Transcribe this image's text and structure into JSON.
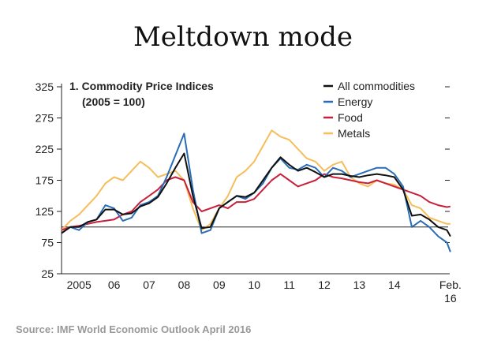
{
  "chart_data": {
    "type": "line",
    "title": "Meltdown mode",
    "panel_title": "1. Commodity Price Indices",
    "panel_subtitle": "(2005 = 100)",
    "source": "Source: IMF World Economic Outlook April 2016",
    "x": [
      2005,
      2005.25,
      2005.5,
      2005.75,
      2006,
      2006.25,
      2006.5,
      2006.75,
      2007,
      2007.25,
      2007.5,
      2007.75,
      2008,
      2008.25,
      2008.5,
      2008.75,
      2009,
      2009.25,
      2009.5,
      2009.75,
      2010,
      2010.25,
      2010.5,
      2010.75,
      2011,
      2011.25,
      2011.5,
      2011.75,
      2012,
      2012.25,
      2012.5,
      2012.75,
      2013,
      2013.25,
      2013.5,
      2013.75,
      2014,
      2014.25,
      2014.5,
      2014.75,
      2015,
      2015.25,
      2015.5,
      2015.75,
      2016,
      2016.1
    ],
    "series": [
      {
        "name": "All commodities",
        "color": "#111111",
        "values": [
          90,
          100,
          100,
          108,
          112,
          128,
          128,
          120,
          122,
          133,
          138,
          148,
          170,
          195,
          218,
          150,
          98,
          100,
          130,
          140,
          150,
          148,
          155,
          175,
          195,
          212,
          200,
          190,
          195,
          188,
          180,
          185,
          185,
          182,
          180,
          183,
          185,
          183,
          180,
          160,
          118,
          120,
          112,
          100,
          95,
          85
        ]
      },
      {
        "name": "Energy",
        "color": "#2a6db5",
        "values": [
          90,
          100,
          95,
          108,
          112,
          135,
          130,
          110,
          115,
          135,
          140,
          150,
          180,
          215,
          250,
          160,
          90,
          95,
          130,
          140,
          150,
          145,
          155,
          170,
          195,
          210,
          195,
          192,
          200,
          195,
          180,
          195,
          190,
          180,
          185,
          190,
          195,
          195,
          185,
          165,
          100,
          110,
          100,
          85,
          75,
          60
        ]
      },
      {
        "name": "Food",
        "color": "#c8203c",
        "values": [
          95,
          100,
          102,
          105,
          108,
          110,
          112,
          120,
          125,
          140,
          150,
          160,
          175,
          180,
          175,
          140,
          125,
          130,
          135,
          130,
          140,
          140,
          145,
          160,
          175,
          185,
          175,
          165,
          170,
          175,
          185,
          180,
          178,
          175,
          172,
          170,
          175,
          170,
          165,
          160,
          155,
          150,
          140,
          135,
          132,
          133
        ]
      },
      {
        "name": "Metals",
        "color": "#f5be5a",
        "values": [
          95,
          110,
          120,
          135,
          150,
          170,
          180,
          175,
          190,
          205,
          195,
          180,
          185,
          190,
          175,
          130,
          95,
          105,
          130,
          150,
          180,
          190,
          205,
          230,
          255,
          245,
          240,
          225,
          210,
          205,
          190,
          200,
          205,
          180,
          170,
          165,
          175,
          170,
          168,
          160,
          135,
          130,
          115,
          110,
          105,
          105
        ]
      }
    ],
    "reference_line": 100,
    "xlim": [
      2005,
      2016.17
    ],
    "xticks": [
      {
        "value": 2005.5,
        "label": "2005"
      },
      {
        "value": 2006.5,
        "label": "06"
      },
      {
        "value": 2007.5,
        "label": "07"
      },
      {
        "value": 2008.5,
        "label": "08"
      },
      {
        "value": 2009.5,
        "label": "09"
      },
      {
        "value": 2010.5,
        "label": "10"
      },
      {
        "value": 2011.5,
        "label": "11"
      },
      {
        "value": 2012.5,
        "label": "12"
      },
      {
        "value": 2013.5,
        "label": "13"
      },
      {
        "value": 2014.5,
        "label": "14"
      },
      {
        "value": 2016.1,
        "label": "Feb.\n16"
      }
    ],
    "ylim": [
      25,
      325
    ],
    "yticks": [
      25,
      75,
      125,
      175,
      225,
      275,
      325
    ]
  }
}
